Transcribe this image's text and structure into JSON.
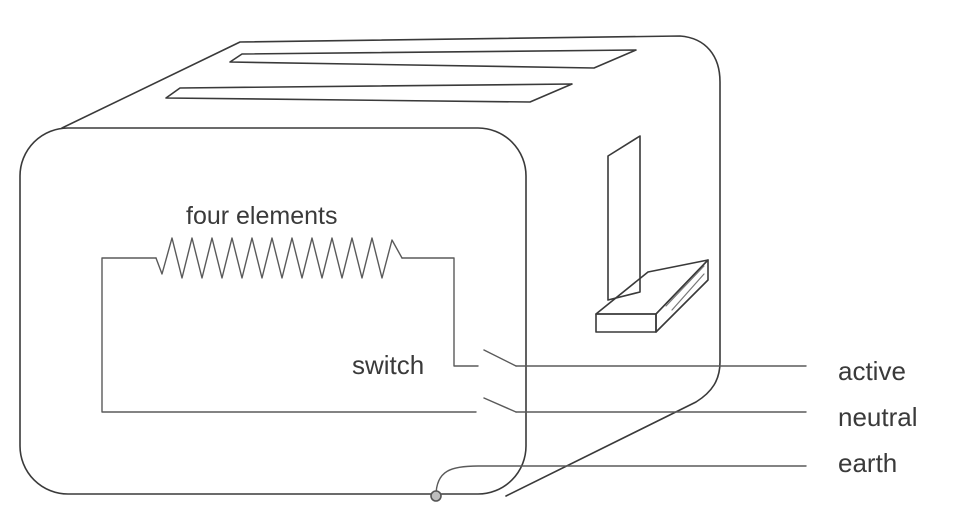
{
  "labels": {
    "elements": "four elements",
    "switch": "switch",
    "active": "active",
    "neutral": "neutral",
    "earth": "earth"
  }
}
